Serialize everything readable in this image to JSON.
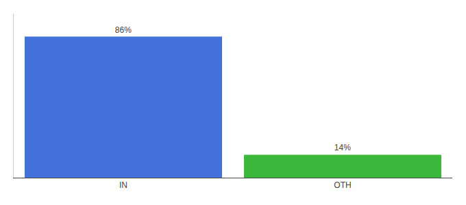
{
  "chart_data": {
    "type": "bar",
    "categories": [
      "IN",
      "OTH"
    ],
    "values": [
      86,
      14
    ],
    "value_labels": [
      "86%",
      "14%"
    ],
    "colors": [
      "#4472db",
      "#3cb93c"
    ],
    "ylim": [
      0,
      100
    ],
    "grid": false,
    "data_labels": true,
    "tick_labels": "x"
  }
}
